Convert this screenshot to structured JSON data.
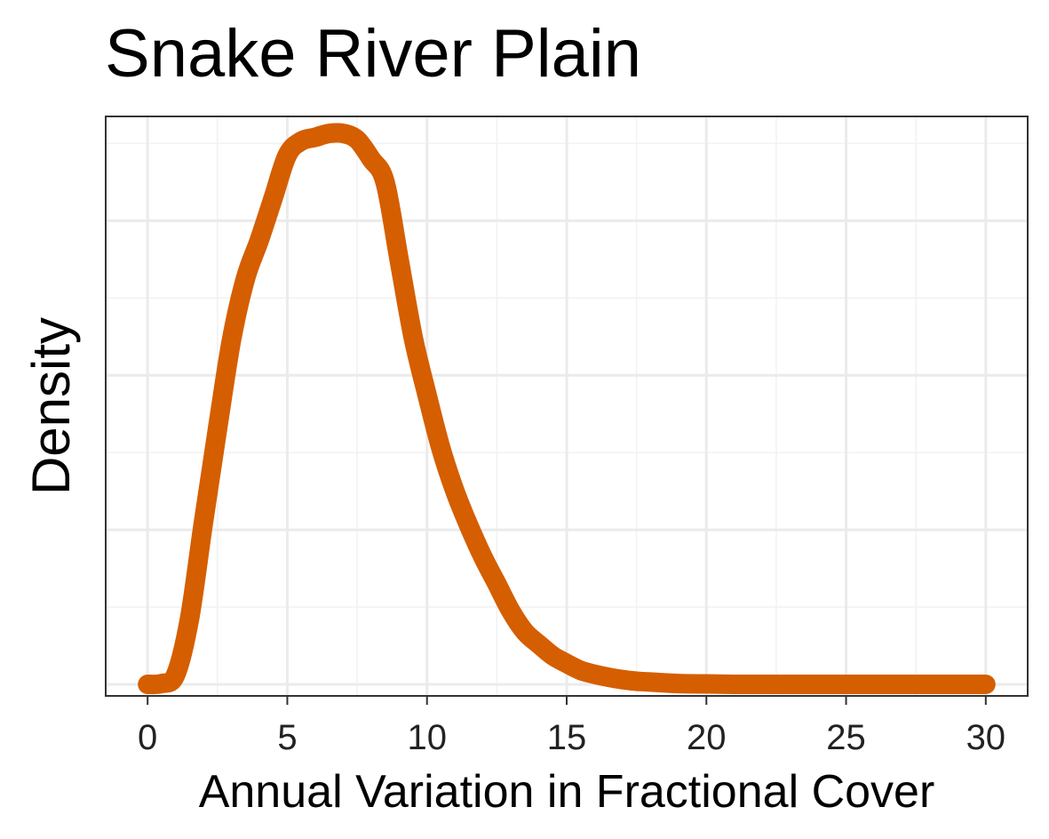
{
  "chart_data": {
    "type": "line",
    "title": "Snake River Plain",
    "xlabel": "Annual Variation in Fractional Cover",
    "ylabel": "Density",
    "xlim": [
      -1.5,
      31.5
    ],
    "ylim": [
      -0.0015,
      0.0735
    ],
    "x_ticks": [
      0,
      5,
      10,
      15,
      20,
      25,
      30
    ],
    "y_ticks_labeled": false,
    "grid": true,
    "line_color": "#D55E00",
    "series": [
      {
        "x": [
          0,
          0.5,
          1,
          1.5,
          2,
          2.5,
          3,
          3.5,
          4,
          4.5,
          5,
          5.5,
          6,
          6.5,
          7,
          7.5,
          8,
          8.5,
          9,
          9.5,
          10,
          10.5,
          11,
          11.5,
          12,
          12.5,
          13,
          13.5,
          14,
          14.5,
          15,
          15.5,
          16,
          16.5,
          17,
          17.5,
          18,
          19,
          20,
          21,
          22,
          23,
          24,
          25,
          26,
          27,
          28,
          29,
          30
        ],
        "y": [
          0,
          0.0001,
          0.0012,
          0.0085,
          0.021,
          0.033,
          0.0445,
          0.0525,
          0.0575,
          0.063,
          0.0685,
          0.0703,
          0.0708,
          0.0713,
          0.0713,
          0.0705,
          0.068,
          0.065,
          0.055,
          0.045,
          0.0375,
          0.0305,
          0.025,
          0.0205,
          0.0165,
          0.013,
          0.0095,
          0.0068,
          0.0052,
          0.0037,
          0.0027,
          0.0018,
          0.0013,
          0.0009,
          0.0006,
          0.0004,
          0.0003,
          0.0001,
          5e-05,
          0,
          0,
          0,
          0,
          0,
          0,
          0,
          0,
          0,
          0
        ]
      }
    ]
  }
}
